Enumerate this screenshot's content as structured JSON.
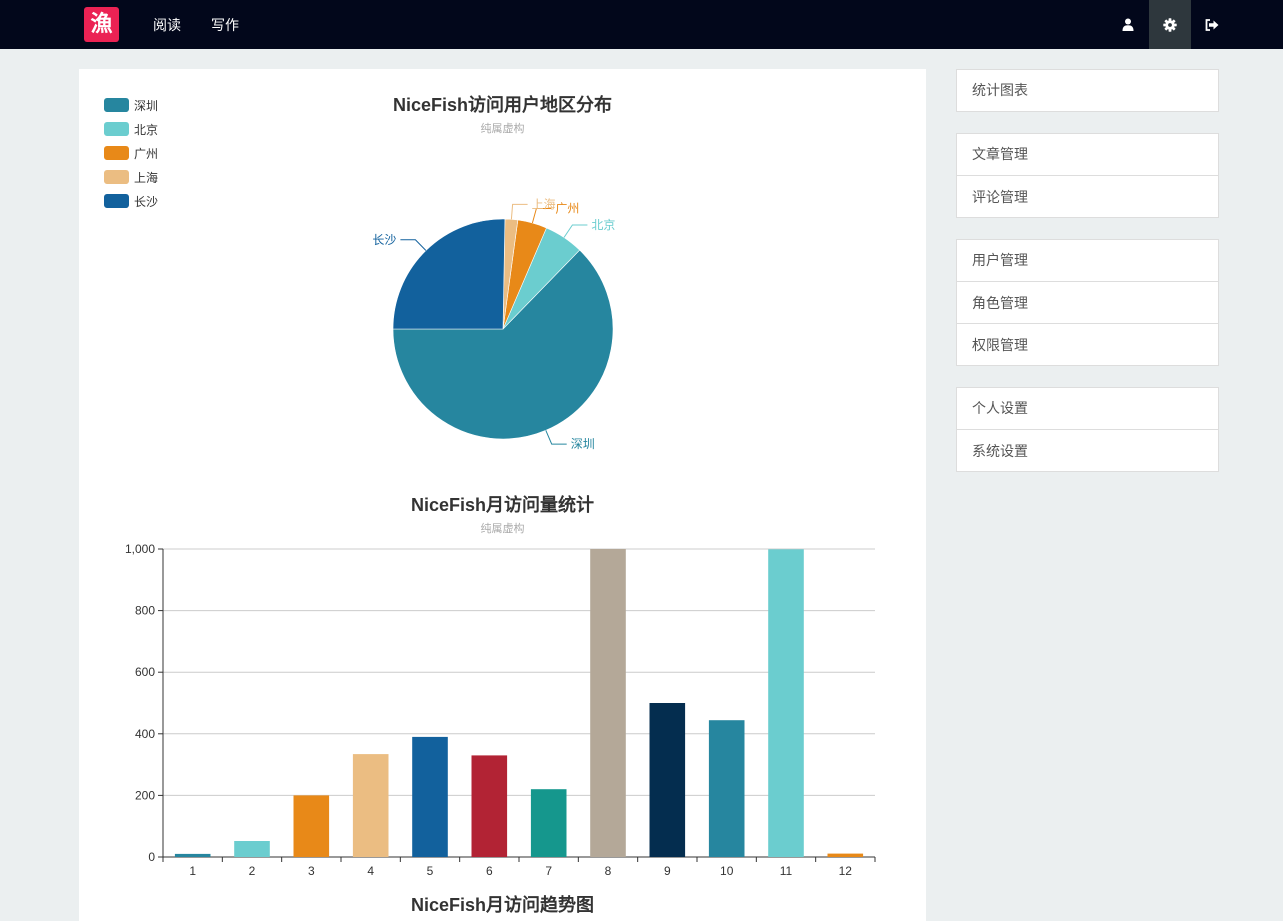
{
  "nav": {
    "logo_text": "漁",
    "links": [
      {
        "label": "阅读"
      },
      {
        "label": "写作"
      }
    ],
    "icons": [
      "user-icon",
      "gear-icon",
      "logout-icon"
    ]
  },
  "colors": {
    "navbar_bg": "#02071b",
    "logo_bg": "#eb2254",
    "active_icon_bg": "#2e373d"
  },
  "charts": {
    "pie_title": "NiceFish访问用户地区分布",
    "pie_subtitle": "纯属虚构",
    "bar_title": "NiceFish月访问量统计",
    "bar_subtitle": "纯属虚构",
    "trend_title": "NiceFish月访问趋势图"
  },
  "chart_data": [
    {
      "type": "pie",
      "title": "NiceFish访问用户地区分布",
      "subtitle": "纯属虚构",
      "legend": "top-left",
      "series": [
        {
          "name": "深圳",
          "value": 335,
          "color": "#26869f"
        },
        {
          "name": "北京",
          "value": 31,
          "color": "#6bcdcf"
        },
        {
          "name": "广州",
          "value": 23,
          "color": "#e88918"
        },
        {
          "name": "上海",
          "value": 10,
          "color": "#ebbd82"
        },
        {
          "name": "长沙",
          "value": 135,
          "color": "#12619d"
        }
      ]
    },
    {
      "type": "bar",
      "title": "NiceFish月访问量统计",
      "subtitle": "纯属虚构",
      "categories": [
        "1",
        "2",
        "3",
        "4",
        "5",
        "6",
        "7",
        "8",
        "9",
        "10",
        "11",
        "12"
      ],
      "values": [
        10,
        52,
        200,
        334,
        390,
        330,
        220,
        1000,
        500,
        444,
        999,
        11
      ],
      "colors": [
        "#26869f",
        "#6bcdcf",
        "#e88918",
        "#ebbd82",
        "#12619d",
        "#b22334",
        "#15978d",
        "#b4a898",
        "#042d4f",
        "#26869f",
        "#6bcdcf",
        "#e88918"
      ],
      "ylim": [
        0,
        1000
      ],
      "yticks": [
        "0",
        "200",
        "400",
        "600",
        "800",
        "1,000"
      ],
      "grid": true
    }
  ],
  "sidebar": {
    "groups": [
      {
        "items": [
          {
            "label": "统计图表"
          }
        ]
      },
      {
        "items": [
          {
            "label": "文章管理"
          },
          {
            "label": "评论管理"
          }
        ]
      },
      {
        "items": [
          {
            "label": "用户管理"
          },
          {
            "label": "角色管理"
          },
          {
            "label": "权限管理"
          }
        ]
      },
      {
        "items": [
          {
            "label": "个人设置"
          },
          {
            "label": "系统设置"
          }
        ]
      }
    ]
  }
}
